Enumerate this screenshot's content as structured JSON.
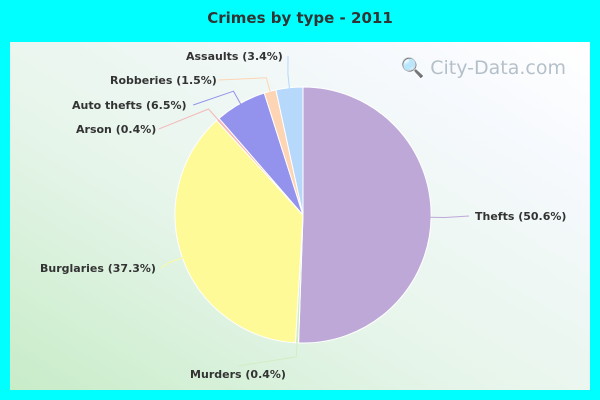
{
  "chart_data": {
    "type": "pie",
    "title": "Crimes by type - 2011",
    "slices": [
      {
        "label": "Thefts (50.6%)",
        "value": 50.6,
        "color": "#bda8d8"
      },
      {
        "label": "Murders (0.4%)",
        "value": 0.4,
        "color": "#d4ecc4"
      },
      {
        "label": "Burglaries (37.3%)",
        "value": 37.3,
        "color": "#fefa98"
      },
      {
        "label": "Arson (0.4%)",
        "value": 0.4,
        "color": "#f4b8b8"
      },
      {
        "label": "Auto thefts (6.5%)",
        "value": 6.5,
        "color": "#9393ed"
      },
      {
        "label": "Robberies (1.5%)",
        "value": 1.5,
        "color": "#fdd5b4"
      },
      {
        "label": "Assaults (3.4%)",
        "value": 3.4,
        "color": "#b5d8fb"
      }
    ]
  },
  "watermark": "City-Data.com",
  "colors": {
    "frame": "#00ffff"
  }
}
